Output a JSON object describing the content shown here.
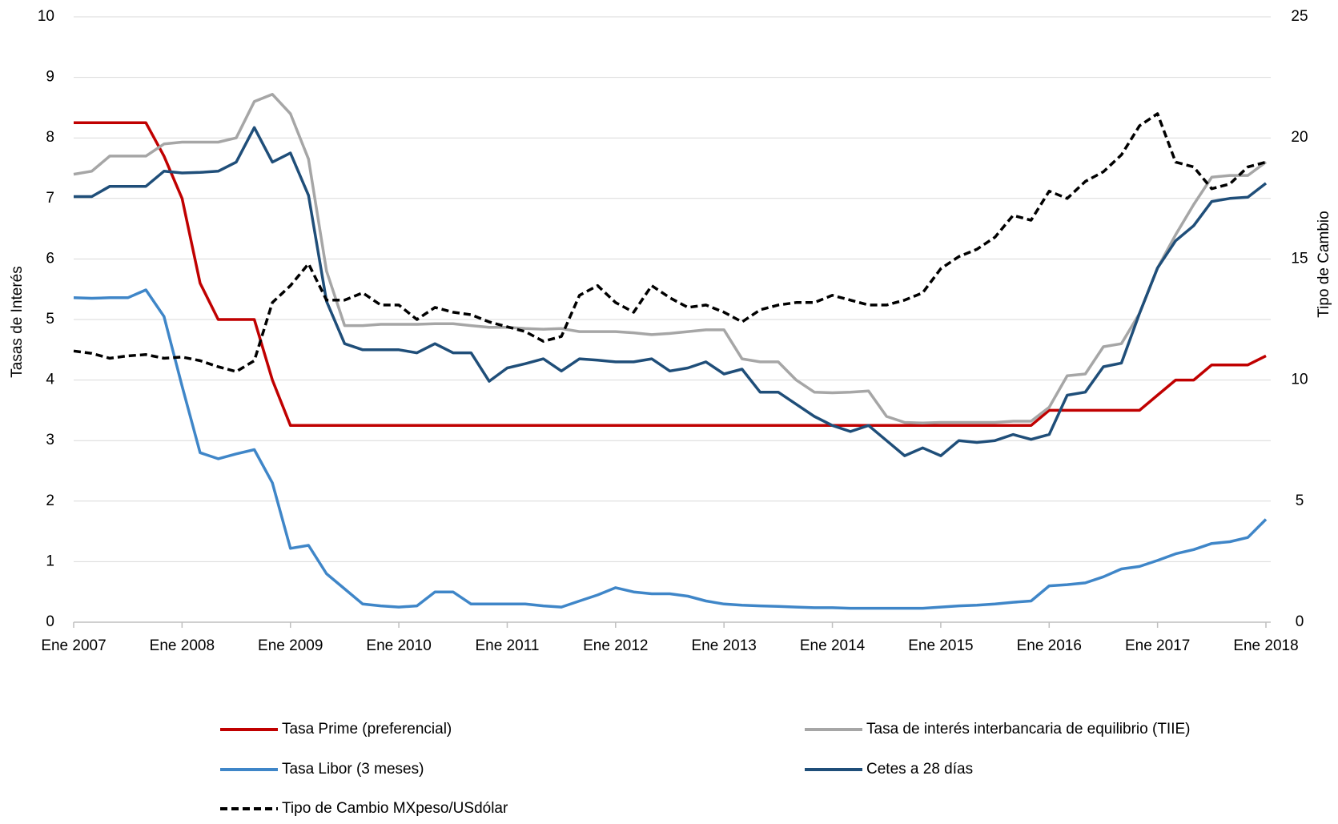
{
  "chart_data": {
    "type": "line",
    "x": [
      "2007-01",
      "2007-03",
      "2007-05",
      "2007-07",
      "2007-09",
      "2007-11",
      "2008-01",
      "2008-03",
      "2008-05",
      "2008-07",
      "2008-09",
      "2008-11",
      "2009-01",
      "2009-03",
      "2009-05",
      "2009-07",
      "2009-09",
      "2009-11",
      "2010-01",
      "2010-03",
      "2010-05",
      "2010-07",
      "2010-09",
      "2010-11",
      "2011-01",
      "2011-03",
      "2011-05",
      "2011-07",
      "2011-09",
      "2011-11",
      "2012-01",
      "2012-03",
      "2012-05",
      "2012-07",
      "2012-09",
      "2012-11",
      "2013-01",
      "2013-03",
      "2013-05",
      "2013-07",
      "2013-09",
      "2013-11",
      "2014-01",
      "2014-03",
      "2014-05",
      "2014-07",
      "2014-09",
      "2014-11",
      "2015-01",
      "2015-03",
      "2015-05",
      "2015-07",
      "2015-09",
      "2015-11",
      "2016-01",
      "2016-03",
      "2016-05",
      "2016-07",
      "2016-09",
      "2016-11",
      "2017-01",
      "2017-03",
      "2017-05",
      "2017-07",
      "2017-09",
      "2017-11",
      "2018-01"
    ],
    "xlim": [
      "2007-01",
      "2018-01"
    ],
    "xticks": [
      {
        "value": "2007-01",
        "label": "Ene 2007"
      },
      {
        "value": "2008-01",
        "label": "Ene 2008"
      },
      {
        "value": "2009-01",
        "label": "Ene 2009"
      },
      {
        "value": "2010-01",
        "label": "Ene 2010"
      },
      {
        "value": "2011-01",
        "label": "Ene 2011"
      },
      {
        "value": "2012-01",
        "label": "Ene 2012"
      },
      {
        "value": "2013-01",
        "label": "Ene 2013"
      },
      {
        "value": "2014-01",
        "label": "Ene 2014"
      },
      {
        "value": "2015-01",
        "label": "Ene 2015"
      },
      {
        "value": "2016-01",
        "label": "Ene 2016"
      },
      {
        "value": "2017-01",
        "label": "Ene 2017"
      },
      {
        "value": "2018-01",
        "label": "Ene 2018"
      }
    ],
    "ylabel": "Tasas de Interés",
    "y2label": "Tipo de Cambio",
    "ylim": [
      0,
      10
    ],
    "yticks": [
      0,
      1,
      2,
      3,
      4,
      5,
      6,
      7,
      8,
      9,
      10
    ],
    "y2lim": [
      0,
      25
    ],
    "y2ticks": [
      0,
      5,
      10,
      15,
      20,
      25
    ],
    "grid": true,
    "legend": "bottom",
    "series": [
      {
        "name": "Tasa Prime (preferencial)",
        "color": "#c00000",
        "values": [
          8.25,
          8.25,
          8.25,
          8.25,
          8.25,
          7.7,
          7.0,
          5.6,
          5.0,
          5.0,
          5.0,
          4.0,
          3.25,
          3.25,
          3.25,
          3.25,
          3.25,
          3.25,
          3.25,
          3.25,
          3.25,
          3.25,
          3.25,
          3.25,
          3.25,
          3.25,
          3.25,
          3.25,
          3.25,
          3.25,
          3.25,
          3.25,
          3.25,
          3.25,
          3.25,
          3.25,
          3.25,
          3.25,
          3.25,
          3.25,
          3.25,
          3.25,
          3.25,
          3.25,
          3.25,
          3.25,
          3.25,
          3.25,
          3.25,
          3.25,
          3.25,
          3.25,
          3.25,
          3.25,
          3.5,
          3.5,
          3.5,
          3.5,
          3.5,
          3.5,
          3.75,
          4.0,
          4.0,
          4.25,
          4.25,
          4.25,
          4.4
        ]
      },
      {
        "name": "Tasa de interés interbancaria de equilibrio (TIIE)",
        "color": "#a6a6a6",
        "values": [
          7.4,
          7.45,
          7.7,
          7.7,
          7.7,
          7.9,
          7.93,
          7.93,
          7.93,
          8.0,
          8.6,
          8.72,
          8.4,
          7.65,
          5.8,
          4.9,
          4.9,
          4.92,
          4.92,
          4.92,
          4.93,
          4.93,
          4.9,
          4.87,
          4.87,
          4.85,
          4.84,
          4.85,
          4.8,
          4.8,
          4.8,
          4.78,
          4.75,
          4.77,
          4.8,
          4.83,
          4.83,
          4.35,
          4.3,
          4.3,
          4.0,
          3.8,
          3.79,
          3.8,
          3.82,
          3.4,
          3.3,
          3.29,
          3.3,
          3.3,
          3.3,
          3.3,
          3.32,
          3.32,
          3.55,
          4.07,
          4.1,
          4.55,
          4.6,
          5.1,
          5.85,
          6.4,
          6.9,
          7.35,
          7.38,
          7.38,
          7.6
        ]
      },
      {
        "name": "Tasa Libor (3 meses)",
        "color": "#3f86c8",
        "values": [
          5.36,
          5.35,
          5.36,
          5.36,
          5.49,
          5.05,
          3.9,
          2.8,
          2.7,
          2.78,
          2.85,
          2.3,
          1.22,
          1.27,
          0.8,
          0.55,
          0.3,
          0.27,
          0.25,
          0.27,
          0.5,
          0.5,
          0.3,
          0.3,
          0.3,
          0.3,
          0.27,
          0.25,
          0.35,
          0.45,
          0.57,
          0.5,
          0.47,
          0.47,
          0.43,
          0.35,
          0.3,
          0.28,
          0.27,
          0.26,
          0.25,
          0.24,
          0.24,
          0.23,
          0.23,
          0.23,
          0.23,
          0.23,
          0.25,
          0.27,
          0.28,
          0.3,
          0.33,
          0.35,
          0.6,
          0.62,
          0.65,
          0.75,
          0.88,
          0.92,
          1.02,
          1.13,
          1.2,
          1.3,
          1.33,
          1.4,
          1.7
        ]
      },
      {
        "name": "Cetes a 28 días",
        "color": "#1f4e79",
        "values": [
          7.03,
          7.03,
          7.2,
          7.2,
          7.2,
          7.45,
          7.42,
          7.43,
          7.45,
          7.6,
          8.17,
          7.6,
          7.75,
          7.05,
          5.3,
          4.6,
          4.5,
          4.5,
          4.5,
          4.45,
          4.6,
          4.45,
          4.45,
          3.98,
          4.2,
          4.27,
          4.35,
          4.15,
          4.35,
          4.33,
          4.3,
          4.3,
          4.35,
          4.15,
          4.2,
          4.3,
          4.1,
          4.18,
          3.8,
          3.8,
          3.6,
          3.4,
          3.25,
          3.15,
          3.25,
          3.0,
          2.75,
          2.88,
          2.75,
          3.0,
          2.97,
          3.0,
          3.1,
          3.02,
          3.1,
          3.75,
          3.8,
          4.22,
          4.28,
          5.1,
          5.85,
          6.3,
          6.55,
          6.95,
          7.0,
          7.02,
          7.25
        ]
      },
      {
        "name": "Tipo de Cambio MXpeso/USdólar",
        "color": "#000000",
        "dash": true,
        "axis": "y2",
        "values": [
          11.2,
          11.1,
          10.9,
          11.0,
          11.05,
          10.9,
          10.95,
          10.8,
          10.55,
          10.35,
          10.8,
          13.2,
          13.9,
          14.8,
          13.3,
          13.3,
          13.6,
          13.1,
          13.1,
          12.5,
          13.0,
          12.8,
          12.7,
          12.4,
          12.2,
          12.0,
          11.6,
          11.8,
          13.5,
          13.9,
          13.2,
          12.8,
          13.9,
          13.4,
          13.0,
          13.1,
          12.8,
          12.4,
          12.9,
          13.1,
          13.2,
          13.2,
          13.5,
          13.3,
          13.1,
          13.1,
          13.3,
          13.6,
          14.6,
          15.1,
          15.4,
          15.9,
          16.8,
          16.6,
          17.8,
          17.5,
          18.2,
          18.6,
          19.3,
          20.5,
          21.0,
          19.0,
          18.8,
          17.9,
          18.1,
          18.8,
          19.0
        ]
      }
    ]
  }
}
